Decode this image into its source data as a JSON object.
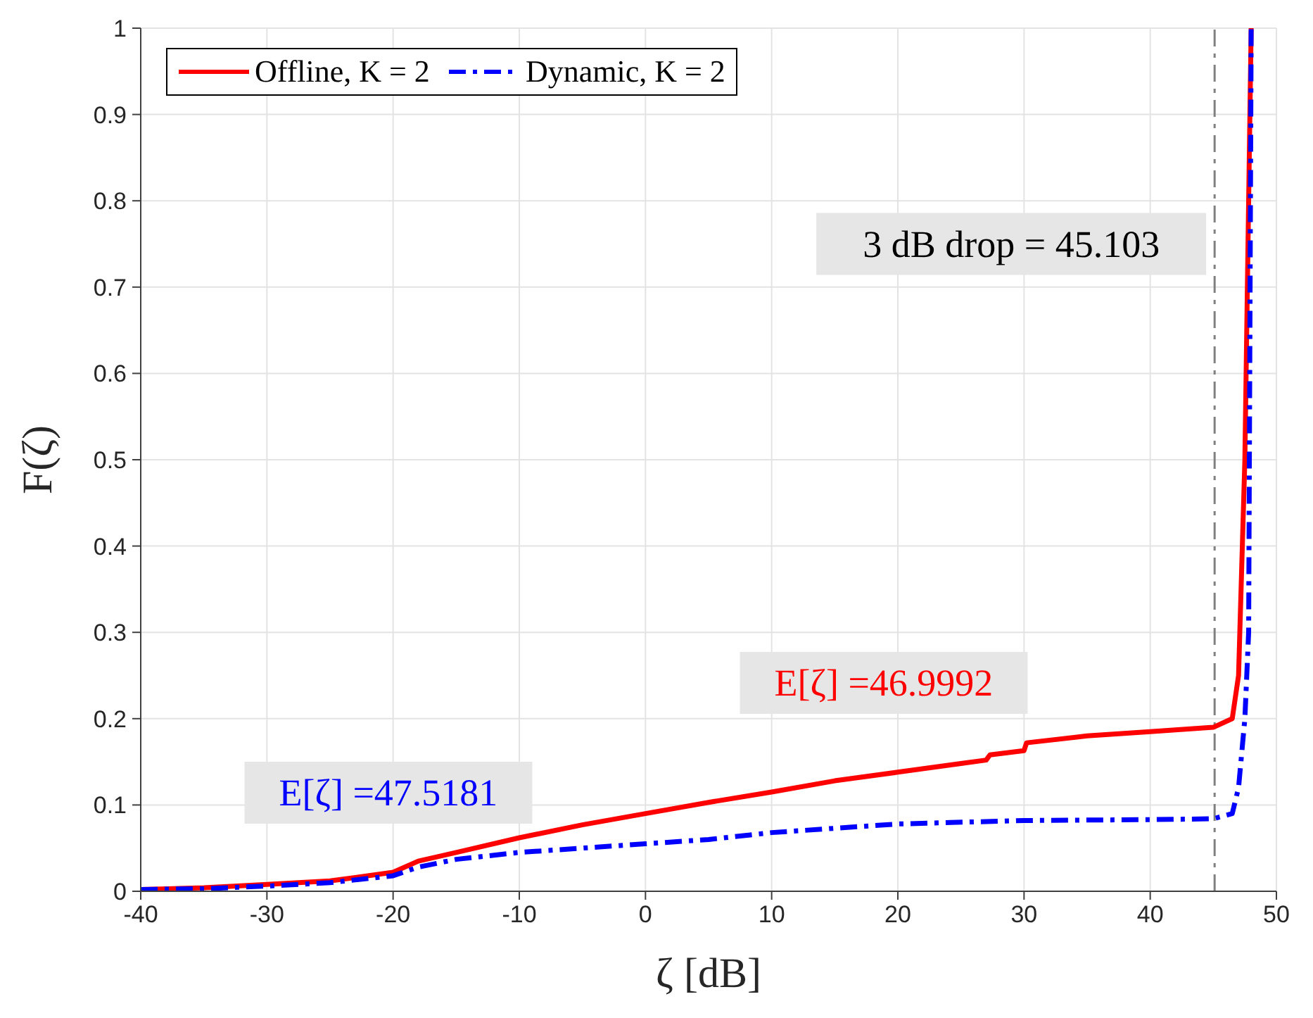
{
  "chart_data": {
    "type": "line",
    "xlabel": "ζ [dB]",
    "ylabel": "F(ζ)",
    "xlim": [
      -40,
      50
    ],
    "xticks": [
      -40,
      -30,
      -20,
      -10,
      0,
      10,
      20,
      30,
      40,
      50
    ],
    "ylim": [
      0,
      1
    ],
    "yticks": [
      0,
      0.1,
      0.2,
      0.3,
      0.4,
      0.5,
      0.6,
      0.7,
      0.8,
      0.9,
      1
    ],
    "grid": true,
    "legend": "top left",
    "marker": "none",
    "series": [
      {
        "name": "Offline, K = 2",
        "color": "#ff0000",
        "line_style": "solid",
        "x": [
          -40,
          -35,
          -30,
          -25,
          -20,
          -18,
          -15,
          -10,
          -5,
          0,
          5,
          10,
          15,
          20,
          25,
          27,
          27.3,
          30,
          30.2,
          35,
          40,
          45,
          46.5,
          47,
          47.5,
          47.8,
          48
        ],
        "values": [
          0.002,
          0.004,
          0.008,
          0.012,
          0.022,
          0.035,
          0.045,
          0.062,
          0.077,
          0.09,
          0.103,
          0.115,
          0.128,
          0.138,
          0.148,
          0.152,
          0.158,
          0.163,
          0.172,
          0.18,
          0.185,
          0.19,
          0.2,
          0.25,
          0.5,
          0.8,
          1
        ]
      },
      {
        "name": "Dynamic, K = 2",
        "color": "#0000ff",
        "line_style": "dashed",
        "x": [
          -40,
          -35,
          -30,
          -25,
          -20,
          -18,
          -15,
          -10,
          -5,
          0,
          5,
          10,
          15,
          20,
          30,
          40,
          45,
          46.5,
          47,
          47.5,
          47.8,
          48
        ],
        "values": [
          0.002,
          0.003,
          0.006,
          0.01,
          0.018,
          0.028,
          0.037,
          0.045,
          0.05,
          0.055,
          0.06,
          0.068,
          0.073,
          0.078,
          0.082,
          0.083,
          0.084,
          0.09,
          0.12,
          0.2,
          0.3,
          1
        ]
      }
    ],
    "ref_lines": [
      {
        "axis": "x",
        "value": 45.103,
        "label": "3 dB drop = 45.103",
        "color": "#808080",
        "line_style": "dashed"
      }
    ],
    "annotations": [
      "E[ζ] =46.9992",
      "E[ζ] =47.5181"
    ]
  }
}
